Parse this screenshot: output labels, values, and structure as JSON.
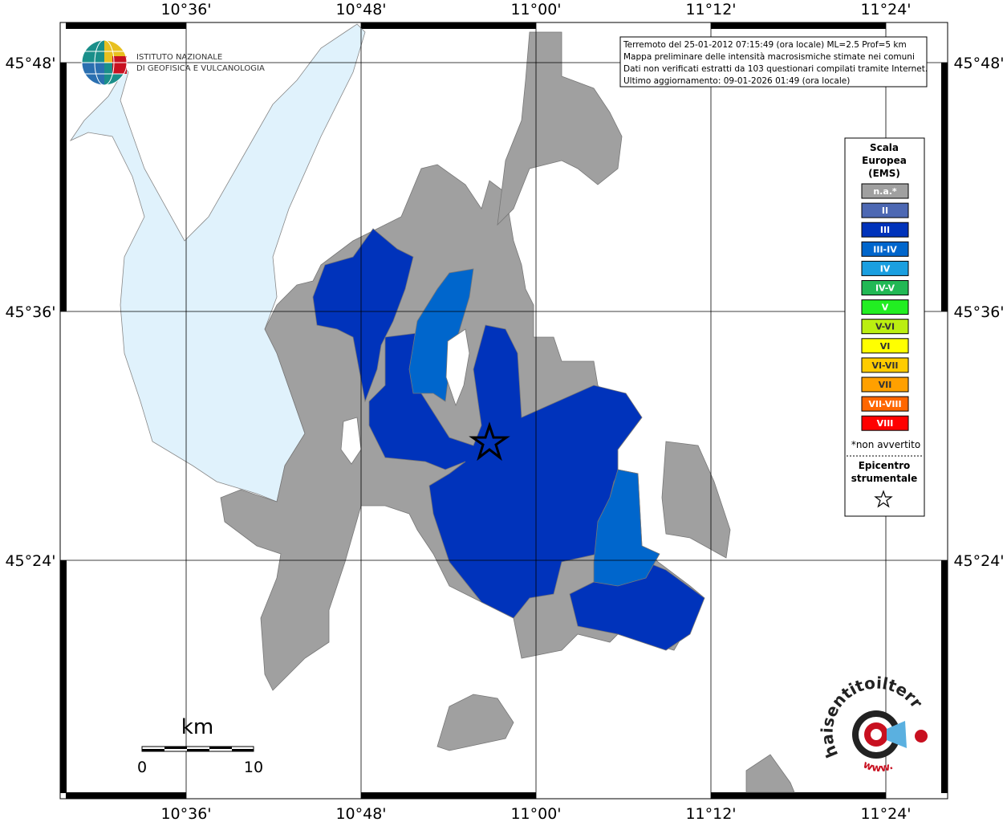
{
  "header": {
    "institute": [
      "ISTITUTO NAZIONALE",
      "DI GEOFISICA E VULCANOLOGIA"
    ]
  },
  "info": [
    "Terremoto del 25-01-2012 07:15:49 (ora locale) ML=2.5 Prof=5 km",
    "Mappa preliminare delle intensità macrosismiche stimate nei comuni",
    "Dati non verificati estratti da 103 questionari compilati tramite Internet.",
    "Ultimo aggiornamento: 09-01-2026 01:49 (ora locale)"
  ],
  "graticule": {
    "longitudes": [
      "10°36'",
      "10°48'",
      "11°00'",
      "11°12'",
      "11°24'"
    ],
    "latitudes": [
      "45°48'",
      "45°36'",
      "45°24'"
    ]
  },
  "legend": {
    "title": [
      "Scala",
      "Europea",
      "(EMS)"
    ],
    "items": [
      {
        "label": "n.a.*",
        "color": "#a0a0a0"
      },
      {
        "label": "II",
        "color": "#4d68b3"
      },
      {
        "label": "III",
        "color": "#0033bb"
      },
      {
        "label": "III-IV",
        "color": "#0066cc"
      },
      {
        "label": "IV",
        "color": "#1a9fe0"
      },
      {
        "label": "IV-V",
        "color": "#22b855"
      },
      {
        "label": "V",
        "color": "#22ee22"
      },
      {
        "label": "V-VI",
        "color": "#bbee11"
      },
      {
        "label": "VI",
        "color": "#ffff00"
      },
      {
        "label": "VI-VII",
        "color": "#ffcc00"
      },
      {
        "label": "VII",
        "color": "#ffa000"
      },
      {
        "label": "VII-VIII",
        "color": "#ff6600"
      },
      {
        "label": "VIII",
        "color": "#ff0000"
      }
    ],
    "note": "*non avvertito",
    "epicenter": [
      "Epicentro",
      "strumentale"
    ]
  },
  "scale": {
    "unit": "km",
    "labels": [
      "0",
      "10"
    ]
  },
  "logo": {
    "site": "haisentitoilterremoto.it",
    "www": "www."
  }
}
